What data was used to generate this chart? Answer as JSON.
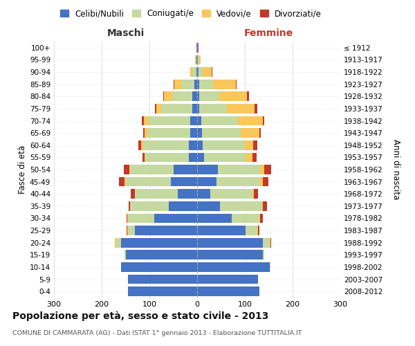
{
  "age_groups": [
    "0-4",
    "5-9",
    "10-14",
    "15-19",
    "20-24",
    "25-29",
    "30-34",
    "35-39",
    "40-44",
    "45-49",
    "50-54",
    "55-59",
    "60-64",
    "65-69",
    "70-74",
    "75-79",
    "80-84",
    "85-89",
    "90-94",
    "95-99",
    "100+"
  ],
  "birth_years": [
    "2008-2012",
    "2003-2007",
    "1998-2002",
    "1993-1997",
    "1988-1992",
    "1983-1987",
    "1978-1982",
    "1973-1977",
    "1968-1972",
    "1963-1967",
    "1958-1962",
    "1953-1957",
    "1948-1952",
    "1943-1947",
    "1938-1942",
    "1933-1937",
    "1928-1932",
    "1923-1927",
    "1918-1922",
    "1913-1917",
    "≤ 1912"
  ],
  "maschi": {
    "celibi": [
      145,
      145,
      160,
      150,
      160,
      130,
      90,
      60,
      40,
      55,
      50,
      18,
      18,
      15,
      15,
      10,
      10,
      6,
      2,
      1,
      1
    ],
    "coniugati": [
      0,
      0,
      0,
      2,
      10,
      15,
      55,
      80,
      90,
      95,
      90,
      90,
      95,
      90,
      88,
      65,
      42,
      28,
      8,
      2,
      0
    ],
    "vedovi": [
      0,
      0,
      0,
      0,
      2,
      1,
      1,
      1,
      1,
      2,
      2,
      2,
      5,
      5,
      8,
      10,
      18,
      14,
      5,
      1,
      0
    ],
    "divorziati": [
      0,
      0,
      0,
      0,
      1,
      2,
      2,
      2,
      8,
      12,
      12,
      5,
      5,
      3,
      5,
      3,
      1,
      2,
      0,
      0,
      0
    ]
  },
  "femmine": {
    "nubili": [
      130,
      128,
      152,
      138,
      138,
      102,
      72,
      48,
      28,
      40,
      44,
      14,
      12,
      10,
      8,
      5,
      5,
      5,
      3,
      2,
      1
    ],
    "coniugate": [
      0,
      0,
      2,
      3,
      14,
      24,
      58,
      88,
      88,
      92,
      88,
      88,
      88,
      82,
      78,
      58,
      42,
      28,
      8,
      2,
      0
    ],
    "vedove": [
      0,
      0,
      0,
      0,
      2,
      2,
      2,
      2,
      3,
      5,
      8,
      14,
      18,
      38,
      52,
      58,
      58,
      48,
      20,
      3,
      1
    ],
    "divorziate": [
      0,
      0,
      0,
      0,
      1,
      3,
      5,
      8,
      8,
      12,
      15,
      8,
      8,
      3,
      3,
      5,
      3,
      2,
      1,
      0,
      1
    ]
  },
  "colors": {
    "celibi": "#4472C4",
    "coniugati": "#c5d9a0",
    "vedovi": "#f9c75a",
    "divorziati": "#c0392b"
  },
  "xlim": 300,
  "title": "Popolazione per età, sesso e stato civile - 2013",
  "subtitle": "COMUNE DI CAMMARATA (AG) - Dati ISTAT 1° gennaio 2013 - Elaborazione TUTTITALIA.IT",
  "xlabel_left": "Maschi",
  "xlabel_right": "Femmine",
  "ylabel_left": "Fasce di età",
  "ylabel_right": "Anni di nascita",
  "legend_labels": [
    "Celibi/Nubili",
    "Coniugati/e",
    "Vedovi/e",
    "Divorziati/e"
  ],
  "bg_color": "#ffffff",
  "grid_color": "#cccccc"
}
